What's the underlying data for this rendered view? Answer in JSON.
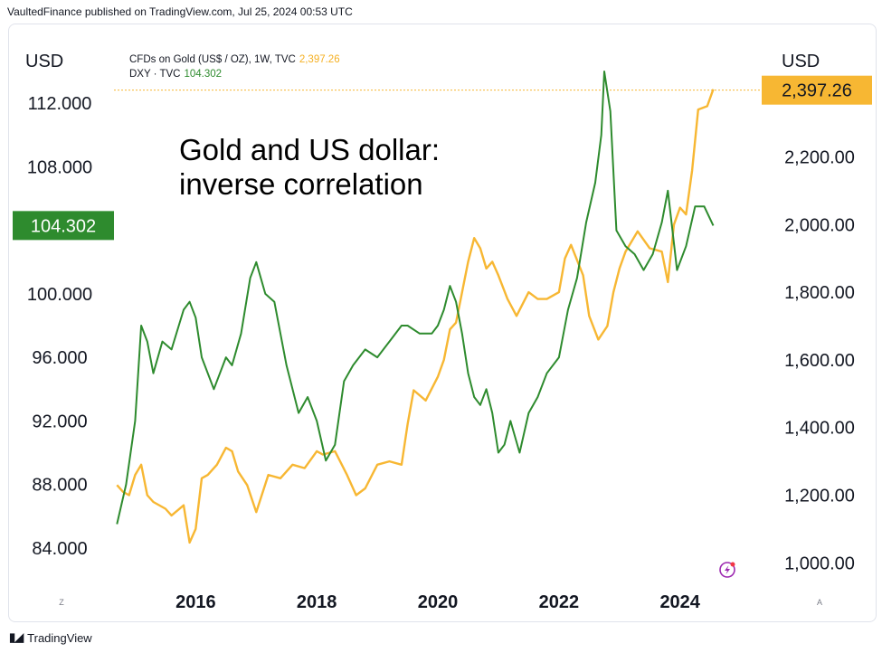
{
  "header": {
    "publisher_text": "VaultedFinance published on TradingView.com, Jul 25, 2024 00:53 UTC"
  },
  "axes_units": {
    "left": "USD",
    "right": "USD"
  },
  "legend": {
    "gold_label": "CFDs on Gold (US$ / OZ), 1W, TVC",
    "gold_value": "2,397.26",
    "dxy_label": "DXY · TVC",
    "dxy_value": "104.302"
  },
  "annotation": {
    "line1": "Gold and US dollar:",
    "line2": "inverse correlation"
  },
  "footer": {
    "brand": "TradingView"
  },
  "corner_labels": {
    "left": "Z",
    "right": "A"
  },
  "colors": {
    "gold": "#f7b733",
    "dxy": "#2e8b2e",
    "gold_badge": "#f7b733",
    "dxy_badge": "#2e8b2e"
  },
  "chart_data": {
    "type": "line",
    "xlabel": "",
    "ylabel": "",
    "x_ticks": [
      "2016",
      "2018",
      "2020",
      "2022",
      "2024"
    ],
    "x_range": [
      2014.65,
      2025.2
    ],
    "left_axis": {
      "series": "DXY · TVC",
      "ylim": [
        82.0,
        114.8
      ],
      "ticks": [
        "84.000",
        "88.000",
        "92.000",
        "96.000",
        "100.000",
        "108.000",
        "112.000"
      ],
      "tick_values": [
        84,
        88,
        92,
        96,
        100,
        108,
        112
      ],
      "last_value": 104.302,
      "last_value_label": "104.302"
    },
    "right_axis": {
      "series": "CFDs on Gold (US$ / OZ), 1W, TVC",
      "ylim": [
        950,
        2490
      ],
      "ticks": [
        "1,000.00",
        "1,200.00",
        "1,400.00",
        "1,600.00",
        "1,800.00",
        "2,000.00",
        "2,200.00"
      ],
      "tick_values": [
        1000,
        1200,
        1400,
        1600,
        1800,
        2000,
        2200
      ],
      "last_value": 2397.26,
      "last_value_label": "2,397.26"
    },
    "series": [
      {
        "name": "CFDs on Gold (US$ / OZ), 1W, TVC",
        "axis": "right",
        "x": [
          2014.7,
          2014.8,
          2014.9,
          2015.0,
          2015.1,
          2015.2,
          2015.3,
          2015.5,
          2015.6,
          2015.8,
          2015.9,
          2016.0,
          2016.1,
          2016.2,
          2016.35,
          2016.5,
          2016.6,
          2016.7,
          2016.85,
          2017.0,
          2017.2,
          2017.4,
          2017.6,
          2017.8,
          2018.0,
          2018.1,
          2018.3,
          2018.5,
          2018.65,
          2018.8,
          2019.0,
          2019.2,
          2019.4,
          2019.5,
          2019.6,
          2019.8,
          2020.0,
          2020.1,
          2020.2,
          2020.3,
          2020.4,
          2020.5,
          2020.6,
          2020.7,
          2020.8,
          2020.9,
          2021.0,
          2021.15,
          2021.3,
          2021.5,
          2021.65,
          2021.8,
          2022.0,
          2022.1,
          2022.2,
          2022.4,
          2022.5,
          2022.65,
          2022.8,
          2022.9,
          2023.0,
          2023.1,
          2023.3,
          2023.5,
          2023.7,
          2023.8,
          2023.9,
          2024.0,
          2024.1,
          2024.2,
          2024.3,
          2024.45,
          2024.55
        ],
        "values": [
          1230,
          1210,
          1200,
          1260,
          1290,
          1200,
          1180,
          1160,
          1140,
          1170,
          1060,
          1100,
          1250,
          1260,
          1290,
          1340,
          1330,
          1270,
          1230,
          1150,
          1260,
          1250,
          1290,
          1280,
          1330,
          1320,
          1330,
          1260,
          1200,
          1220,
          1290,
          1300,
          1290,
          1410,
          1510,
          1480,
          1550,
          1600,
          1690,
          1710,
          1800,
          1890,
          1960,
          1930,
          1870,
          1890,
          1850,
          1780,
          1730,
          1800,
          1780,
          1780,
          1800,
          1900,
          1940,
          1850,
          1730,
          1660,
          1700,
          1800,
          1870,
          1920,
          1980,
          1930,
          1920,
          1830,
          2000,
          2050,
          2030,
          2160,
          2340,
          2350,
          2400
        ]
      },
      {
        "name": "DXY · TVC",
        "axis": "left",
        "x": [
          2014.7,
          2014.85,
          2015.0,
          2015.1,
          2015.2,
          2015.3,
          2015.45,
          2015.6,
          2015.8,
          2015.9,
          2016.0,
          2016.1,
          2016.3,
          2016.5,
          2016.6,
          2016.75,
          2016.9,
          2017.0,
          2017.15,
          2017.3,
          2017.5,
          2017.7,
          2017.85,
          2018.0,
          2018.15,
          2018.3,
          2018.45,
          2018.6,
          2018.8,
          2019.0,
          2019.2,
          2019.4,
          2019.5,
          2019.7,
          2019.9,
          2020.0,
          2020.1,
          2020.2,
          2020.3,
          2020.4,
          2020.5,
          2020.6,
          2020.7,
          2020.8,
          2020.9,
          2021.0,
          2021.1,
          2021.2,
          2021.35,
          2021.5,
          2021.65,
          2021.8,
          2022.0,
          2022.15,
          2022.3,
          2022.45,
          2022.6,
          2022.7,
          2022.75,
          2022.85,
          2022.95,
          2023.1,
          2023.25,
          2023.4,
          2023.55,
          2023.7,
          2023.8,
          2023.95,
          2024.1,
          2024.25,
          2024.4,
          2024.55
        ],
        "values": [
          85.5,
          88.0,
          92.0,
          98.0,
          97.0,
          95.0,
          97.0,
          96.5,
          99.0,
          99.5,
          98.5,
          96.0,
          94.0,
          96.0,
          95.5,
          97.5,
          101.0,
          102.0,
          100.0,
          99.5,
          95.5,
          92.5,
          93.5,
          92.0,
          89.5,
          90.5,
          94.5,
          95.5,
          96.5,
          96.0,
          97.0,
          98.0,
          98.0,
          97.5,
          97.5,
          98.0,
          99.0,
          100.5,
          99.5,
          97.5,
          95.0,
          93.5,
          93.0,
          94.0,
          92.5,
          90.0,
          90.5,
          92.0,
          90.0,
          92.5,
          93.5,
          95.0,
          96.0,
          99.0,
          101.0,
          104.5,
          107.0,
          110.0,
          114.0,
          111.5,
          104.0,
          103.0,
          102.5,
          101.5,
          102.5,
          104.5,
          106.5,
          101.5,
          103.0,
          105.5,
          105.5,
          104.3
        ]
      }
    ]
  }
}
